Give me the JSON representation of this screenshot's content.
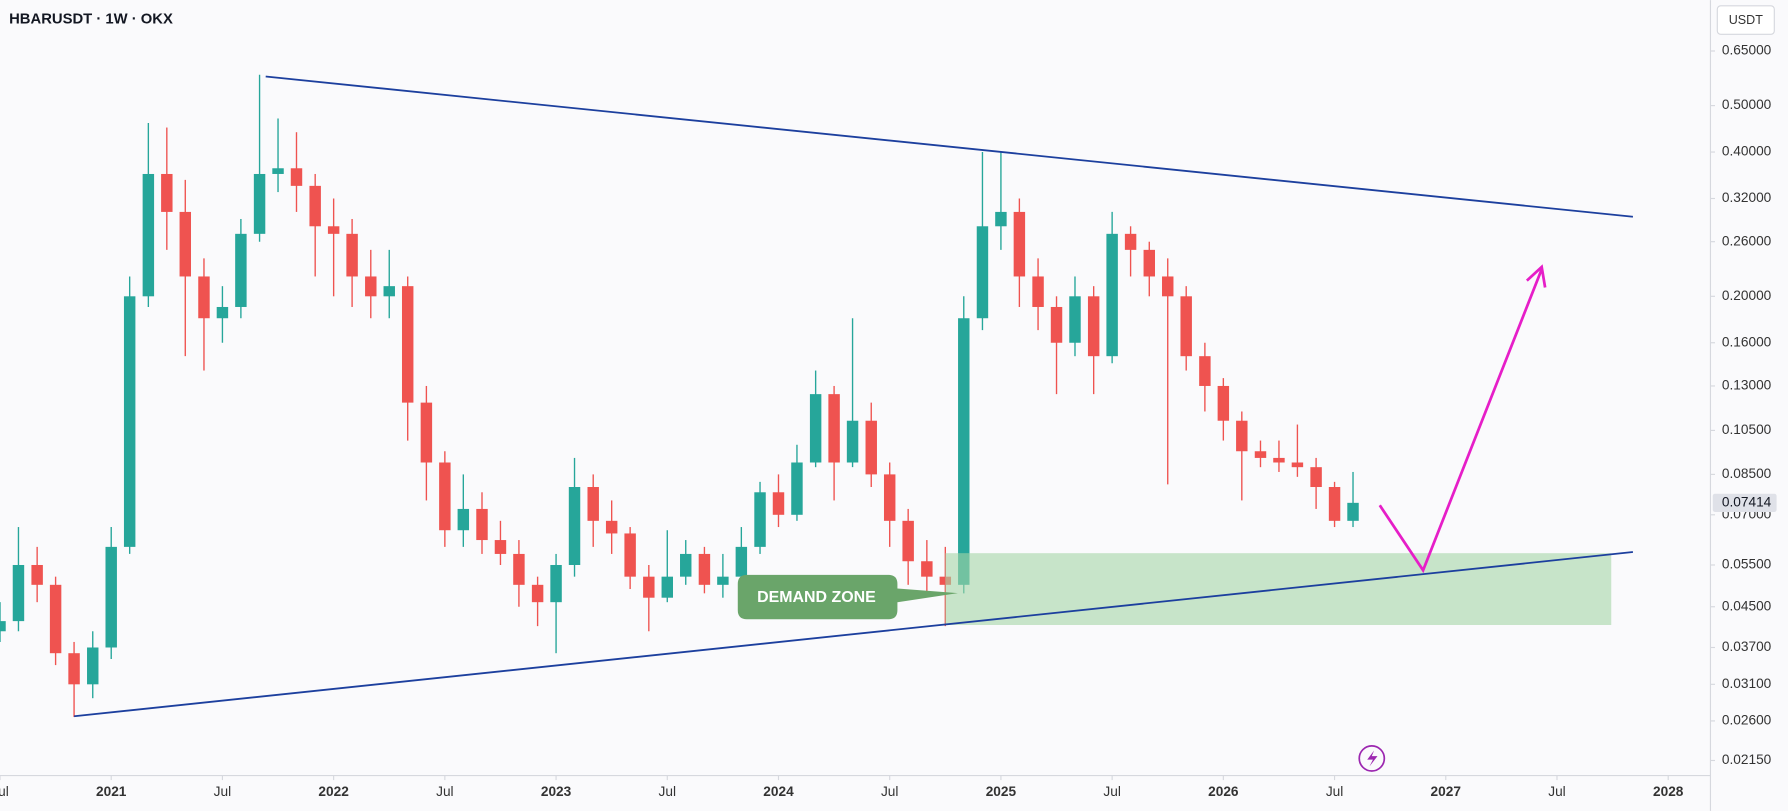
{
  "chart_data": {
    "type": "candlestick",
    "title": "HBARUSDT · 1W · OKX",
    "currency": "USDT",
    "annotations": [
      "DEMAND ZONE"
    ],
    "log_scale": true,
    "grid": false,
    "up_color": "#26a69a",
    "down_color": "#ef5350",
    "xlim": [
      2020.5,
      2028.19
    ],
    "ylim": [
      0.02,
      0.83
    ],
    "xticks": [
      {
        "value": 2020.5,
        "label": "Jul"
      },
      2021,
      {
        "value": 2021.5,
        "label": "Jul"
      },
      2022,
      {
        "value": 2022.5,
        "label": "Jul"
      },
      2023,
      {
        "value": 2023.5,
        "label": "Jul"
      },
      2024,
      {
        "value": 2024.5,
        "label": "Jul"
      },
      2025,
      {
        "value": 2025.5,
        "label": "Jul"
      },
      2026,
      {
        "value": 2026.5,
        "label": "Jul"
      },
      2027,
      {
        "value": 2027.5,
        "label": "Jul"
      },
      2028
    ],
    "yticks": [
      {
        "value": 0.65,
        "label": "0.65000"
      },
      {
        "value": 0.5,
        "label": "0.50000"
      },
      {
        "value": 0.4,
        "label": "0.40000"
      },
      {
        "value": 0.32,
        "label": "0.32000"
      },
      {
        "value": 0.26,
        "label": "0.26000"
      },
      {
        "value": 0.2,
        "label": "0.20000"
      },
      {
        "value": 0.16,
        "label": "0.16000"
      },
      {
        "value": 0.13,
        "label": "0.13000"
      },
      {
        "value": 0.105,
        "label": "0.10500"
      },
      {
        "value": 0.085,
        "label": "0.08500"
      },
      {
        "value": 0.07,
        "label": "0.07000"
      },
      {
        "value": 0.055,
        "label": "0.05500"
      },
      {
        "value": 0.045,
        "label": "0.04500"
      },
      {
        "value": 0.037,
        "label": "0.03700"
      },
      {
        "value": 0.031,
        "label": "0.03100"
      },
      {
        "value": 0.026,
        "label": "0.02600"
      },
      {
        "value": 0.0215,
        "label": "0.02150"
      }
    ],
    "x": [
      2020.5,
      2020.583,
      2020.667,
      2020.75,
      2020.833,
      2020.917,
      2021.0,
      2021.083,
      2021.167,
      2021.25,
      2021.333,
      2021.417,
      2021.5,
      2021.583,
      2021.667,
      2021.75,
      2021.833,
      2021.917,
      2022.0,
      2022.083,
      2022.167,
      2022.25,
      2022.333,
      2022.417,
      2022.5,
      2022.583,
      2022.667,
      2022.75,
      2022.833,
      2022.917,
      2023.0,
      2023.083,
      2023.167,
      2023.25,
      2023.333,
      2023.417,
      2023.5,
      2023.583,
      2023.667,
      2023.75,
      2023.833,
      2023.917,
      2024.0,
      2024.083,
      2024.167,
      2024.25,
      2024.333,
      2024.417,
      2024.5,
      2024.583,
      2024.667,
      2024.75,
      2024.833,
      2024.917,
      2025.0,
      2025.083,
      2025.167,
      2025.25,
      2025.333,
      2025.417,
      2025.5,
      2025.583,
      2025.667,
      2025.75,
      2025.833,
      2025.917,
      2026.0,
      2026.083,
      2026.167,
      2026.25,
      2026.333,
      2026.417,
      2026.5,
      2026.583
    ],
    "open": [
      0.04,
      0.042,
      0.055,
      0.05,
      0.036,
      0.031,
      0.037,
      0.06,
      0.2,
      0.36,
      0.3,
      0.22,
      0.18,
      0.19,
      0.27,
      0.36,
      0.37,
      0.34,
      0.28,
      0.27,
      0.22,
      0.2,
      0.21,
      0.12,
      0.09,
      0.065,
      0.072,
      0.062,
      0.058,
      0.05,
      0.046,
      0.055,
      0.08,
      0.068,
      0.064,
      0.052,
      0.047,
      0.052,
      0.058,
      0.05,
      0.052,
      0.06,
      0.078,
      0.07,
      0.09,
      0.125,
      0.09,
      0.11,
      0.085,
      0.068,
      0.056,
      0.052,
      0.05,
      0.18,
      0.28,
      0.3,
      0.22,
      0.19,
      0.16,
      0.2,
      0.15,
      0.27,
      0.25,
      0.22,
      0.2,
      0.15,
      0.13,
      0.11,
      0.095,
      0.092,
      0.09,
      0.088,
      0.08,
      0.068
    ],
    "high": [
      0.046,
      0.066,
      0.06,
      0.052,
      0.038,
      0.04,
      0.066,
      0.22,
      0.46,
      0.45,
      0.35,
      0.24,
      0.21,
      0.29,
      0.58,
      0.47,
      0.44,
      0.36,
      0.32,
      0.29,
      0.25,
      0.25,
      0.22,
      0.13,
      0.095,
      0.085,
      0.078,
      0.068,
      0.062,
      0.052,
      0.058,
      0.092,
      0.085,
      0.075,
      0.066,
      0.055,
      0.065,
      0.062,
      0.06,
      0.058,
      0.066,
      0.082,
      0.085,
      0.098,
      0.14,
      0.13,
      0.18,
      0.12,
      0.09,
      0.072,
      0.062,
      0.06,
      0.2,
      0.4,
      0.4,
      0.32,
      0.24,
      0.2,
      0.22,
      0.21,
      0.3,
      0.28,
      0.26,
      0.24,
      0.21,
      0.16,
      0.135,
      0.115,
      0.1,
      0.1,
      0.108,
      0.092,
      0.082,
      0.086
    ],
    "low": [
      0.038,
      0.04,
      0.046,
      0.034,
      0.0265,
      0.029,
      0.035,
      0.058,
      0.19,
      0.25,
      0.15,
      0.14,
      0.16,
      0.18,
      0.26,
      0.33,
      0.3,
      0.22,
      0.2,
      0.19,
      0.18,
      0.18,
      0.1,
      0.075,
      0.06,
      0.06,
      0.058,
      0.055,
      0.045,
      0.041,
      0.036,
      0.052,
      0.06,
      0.058,
      0.049,
      0.04,
      0.046,
      0.05,
      0.048,
      0.047,
      0.05,
      0.058,
      0.066,
      0.068,
      0.088,
      0.075,
      0.088,
      0.08,
      0.06,
      0.05,
      0.048,
      0.041,
      0.048,
      0.17,
      0.25,
      0.19,
      0.17,
      0.125,
      0.15,
      0.125,
      0.145,
      0.22,
      0.2,
      0.081,
      0.14,
      0.115,
      0.1,
      0.075,
      0.088,
      0.086,
      0.084,
      0.072,
      0.066,
      0.066
    ],
    "close": [
      0.042,
      0.055,
      0.05,
      0.036,
      0.031,
      0.037,
      0.06,
      0.2,
      0.36,
      0.3,
      0.22,
      0.18,
      0.19,
      0.27,
      0.36,
      0.37,
      0.34,
      0.28,
      0.27,
      0.22,
      0.2,
      0.21,
      0.12,
      0.09,
      0.065,
      0.072,
      0.062,
      0.058,
      0.05,
      0.046,
      0.055,
      0.08,
      0.068,
      0.064,
      0.052,
      0.047,
      0.052,
      0.058,
      0.05,
      0.052,
      0.06,
      0.078,
      0.07,
      0.09,
      0.125,
      0.09,
      0.11,
      0.085,
      0.068,
      0.056,
      0.052,
      0.05,
      0.18,
      0.28,
      0.3,
      0.22,
      0.19,
      0.16,
      0.2,
      0.15,
      0.27,
      0.25,
      0.22,
      0.2,
      0.15,
      0.13,
      0.11,
      0.095,
      0.092,
      0.09,
      0.088,
      0.08,
      0.068,
      0.07414
    ]
  }
}
